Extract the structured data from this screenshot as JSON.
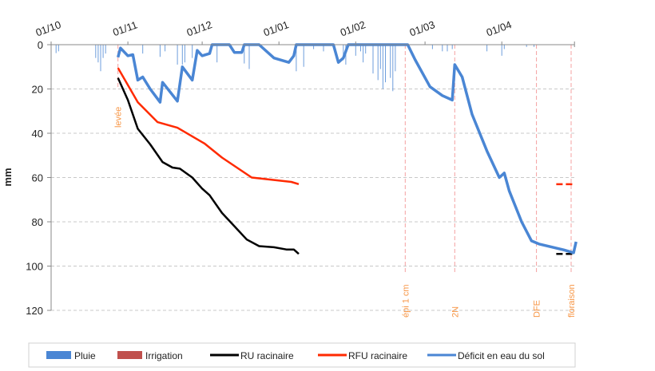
{
  "chart_data": {
    "type": "line",
    "ylabel": "mm",
    "ylim": [
      0,
      120
    ],
    "y_inverted": true,
    "yticks": [
      0,
      20,
      40,
      60,
      80,
      100,
      120
    ],
    "xlim": [
      "01/10",
      "01/05"
    ],
    "xticks": [
      "01/10",
      "01/11",
      "01/12",
      "01/01",
      "01/02",
      "01/03",
      "01/04"
    ],
    "x_axis_position": "top",
    "grid": "horizontal dashed",
    "legend_position": "bottom",
    "legend": [
      "Pluie",
      "Irrigation",
      "RU racinaire",
      "RFU racinaire",
      "Déficit en eau du sol"
    ],
    "colors": {
      "pluie": "#4a86d4",
      "irrigation": "#c0504d",
      "ru": "#000000",
      "rfu": "#ff2a00",
      "deficit": "#4a86d4",
      "stage": "#f79646"
    },
    "stages": [
      {
        "label": "levée",
        "date": "28/10"
      },
      {
        "label": "épi 1 cm",
        "date": "21/02"
      },
      {
        "label": "2N",
        "date": "13/03"
      },
      {
        "label": "DFE",
        "date": "15/04"
      },
      {
        "label": "floraison",
        "date": "29/04"
      }
    ],
    "pluie": [
      [
        "03/10",
        3.8
      ],
      [
        "04/10",
        3
      ],
      [
        "19/10",
        6
      ],
      [
        "20/10",
        8
      ],
      [
        "21/10",
        12
      ],
      [
        "22/10",
        6
      ],
      [
        "23/10",
        4
      ],
      [
        "07/11",
        4
      ],
      [
        "14/11",
        5.5
      ],
      [
        "16/11",
        3
      ],
      [
        "21/11",
        9
      ],
      [
        "23/11",
        9
      ],
      [
        "24/11",
        8
      ],
      [
        "27/11",
        6
      ],
      [
        "07/12",
        8
      ],
      [
        "18/12",
        8.5
      ],
      [
        "20/12",
        11
      ],
      [
        "08/01",
        12
      ],
      [
        "11/01",
        10
      ],
      [
        "15/01",
        2
      ],
      [
        "19/01",
        3
      ],
      [
        "27/01",
        7
      ],
      [
        "28/01",
        9
      ],
      [
        "01/02",
        5
      ],
      [
        "03/02",
        3
      ],
      [
        "04/02",
        8
      ],
      [
        "05/02",
        4
      ],
      [
        "08/02",
        13
      ],
      [
        "10/02",
        16
      ],
      [
        "11/02",
        11
      ],
      [
        "12/02",
        20
      ],
      [
        "13/02",
        17
      ],
      [
        "15/02",
        15
      ],
      [
        "16/02",
        21
      ],
      [
        "17/02",
        12
      ],
      [
        "04/03",
        2
      ],
      [
        "08/03",
        3
      ],
      [
        "10/03",
        3
      ],
      [
        "12/03",
        2
      ],
      [
        "26/03",
        3
      ],
      [
        "01/04",
        5
      ],
      [
        "02/04",
        2
      ],
      [
        "11/04",
        1
      ],
      [
        "14/04",
        1
      ]
    ],
    "irrigation": [],
    "ru_racinaire": [
      [
        "28/10",
        15
      ],
      [
        "01/11",
        25
      ],
      [
        "05/11",
        38
      ],
      [
        "10/11",
        45
      ],
      [
        "15/11",
        53
      ],
      [
        "19/11",
        55.5
      ],
      [
        "22/11",
        56
      ],
      [
        "27/11",
        60
      ],
      [
        "01/12",
        65
      ],
      [
        "04/12",
        68
      ],
      [
        "09/12",
        76
      ],
      [
        "14/12",
        82
      ],
      [
        "19/12",
        88
      ],
      [
        "24/12",
        91
      ],
      [
        "30/12",
        91.5
      ],
      [
        "04/01",
        92.5
      ],
      [
        "07/01",
        92.5
      ],
      [
        "09/01",
        94.5
      ],
      [
        "30/04",
        94.5
      ]
    ],
    "rfu_racinaire": [
      [
        "28/10",
        10.5
      ],
      [
        "05/11",
        26
      ],
      [
        "13/11",
        35
      ],
      [
        "21/11",
        37.5
      ],
      [
        "02/12",
        44.7
      ],
      [
        "09/12",
        51
      ],
      [
        "21/12",
        60
      ],
      [
        "06/01",
        62
      ],
      [
        "09/01",
        63
      ],
      [
        "30/04",
        63
      ]
    ],
    "deficit": [
      [
        "28/10",
        5.7
      ],
      [
        "29/10",
        1.5
      ],
      [
        "01/11",
        5
      ],
      [
        "03/11",
        4.5
      ],
      [
        "05/11",
        16
      ],
      [
        "07/11",
        14.6
      ],
      [
        "10/11",
        20
      ],
      [
        "14/11",
        26
      ],
      [
        "15/11",
        17
      ],
      [
        "21/11",
        25.5
      ],
      [
        "23/11",
        10
      ],
      [
        "27/11",
        16
      ],
      [
        "29/11",
        2.6
      ],
      [
        "01/12",
        5
      ],
      [
        "04/12",
        4
      ],
      [
        "05/12",
        0
      ],
      [
        "12/12",
        0
      ],
      [
        "14/12",
        3.5
      ],
      [
        "17/12",
        3.5
      ],
      [
        "18/12",
        0
      ],
      [
        "24/12",
        0
      ],
      [
        "30/12",
        6
      ],
      [
        "05/01",
        8
      ],
      [
        "07/01",
        5
      ],
      [
        "08/01",
        0
      ],
      [
        "23/01",
        0
      ],
      [
        "25/01",
        8
      ],
      [
        "27/01",
        6
      ],
      [
        "29/01",
        0
      ],
      [
        "22/02",
        0
      ],
      [
        "25/02",
        6.8
      ],
      [
        "03/03",
        19
      ],
      [
        "08/03",
        23
      ],
      [
        "12/03",
        25
      ],
      [
        "13/03",
        9
      ],
      [
        "16/03",
        14.6
      ],
      [
        "20/03",
        31.5
      ],
      [
        "26/03",
        48
      ],
      [
        "31/03",
        60
      ],
      [
        "02/04",
        58
      ],
      [
        "04/04",
        66
      ],
      [
        "09/04",
        80
      ],
      [
        "13/04",
        88.6
      ],
      [
        "16/04",
        90
      ],
      [
        "26/04",
        92.7
      ],
      [
        "30/04",
        94
      ],
      [
        "01/05",
        89
      ]
    ],
    "dashed_from": "23/04"
  }
}
